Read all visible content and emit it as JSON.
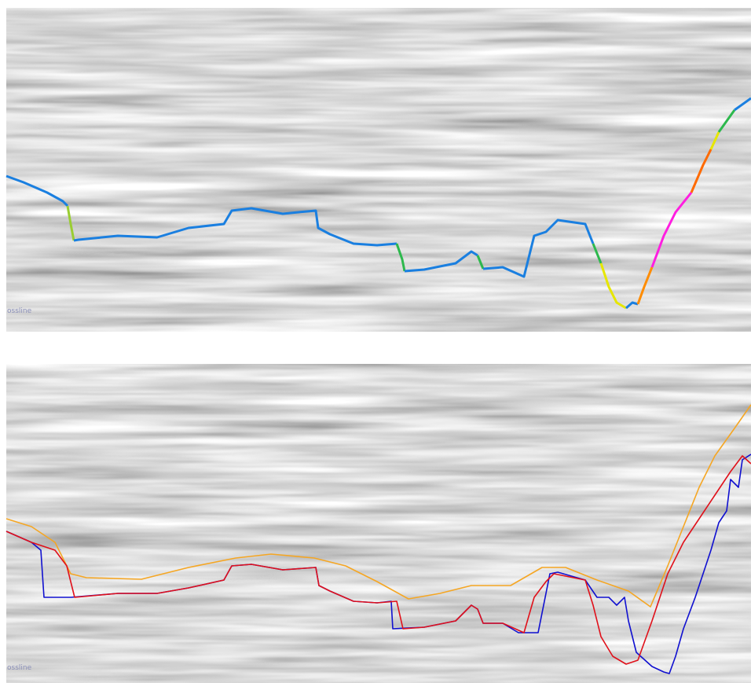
{
  "panels": [
    {
      "label": "ossline"
    },
    {
      "label": "ossline"
    }
  ]
}
